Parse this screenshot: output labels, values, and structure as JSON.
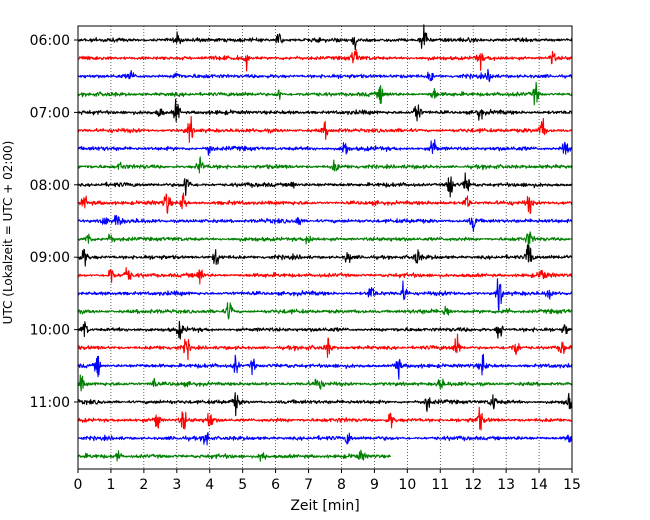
{
  "chart_data": {
    "type": "line",
    "title": "",
    "xlabel": "Zeit  [min]",
    "ylabel": "UTC (Lokalzeit = UTC + 02:00)",
    "xlim": [
      0,
      15
    ],
    "x_ticks": [
      "0",
      "1",
      "2",
      "3",
      "4",
      "5",
      "6",
      "7",
      "8",
      "9",
      "10",
      "11",
      "12",
      "13",
      "14",
      "15"
    ],
    "y_ticks": [
      "06:00",
      "07:00",
      "08:00",
      "09:00",
      "10:00",
      "11:00"
    ],
    "grid": "vertical dotted lines at each minute",
    "trace_colors": [
      "#000000",
      "#ff0000",
      "#0000ff",
      "#008000"
    ],
    "series": [
      {
        "start": "06:00",
        "x": [
          0,
          15
        ],
        "end_x": 15,
        "color": "#000000",
        "events": [
          [
            6.1,
            7
          ],
          [
            10.5,
            16
          ],
          [
            8.4,
            6
          ],
          [
            3.0,
            4
          ]
        ]
      },
      {
        "start": "06:15",
        "x": [
          0,
          15
        ],
        "end_x": 15,
        "color": "#ff0000",
        "events": [
          [
            5.1,
            7
          ],
          [
            8.4,
            9
          ],
          [
            12.2,
            7
          ],
          [
            14.4,
            6
          ]
        ]
      },
      {
        "start": "06:30",
        "x": [
          0,
          15
        ],
        "end_x": 15,
        "color": "#0000ff",
        "events": [
          [
            1.6,
            4
          ],
          [
            3.0,
            6
          ],
          [
            10.7,
            5
          ],
          [
            12.5,
            5
          ]
        ]
      },
      {
        "start": "06:45",
        "x": [
          0,
          15
        ],
        "end_x": 15,
        "color": "#008000",
        "events": [
          [
            9.2,
            7
          ],
          [
            10.8,
            6
          ],
          [
            13.9,
            9
          ],
          [
            6.1,
            5
          ]
        ]
      },
      {
        "start": "07:00",
        "x": [
          0,
          15
        ],
        "end_x": 15,
        "color": "#000000",
        "events": [
          [
            3.0,
            12
          ],
          [
            10.3,
            13
          ],
          [
            12.2,
            6
          ],
          [
            2.5,
            4
          ]
        ]
      },
      {
        "start": "07:15",
        "x": [
          0,
          15
        ],
        "end_x": 15,
        "color": "#ff0000",
        "events": [
          [
            3.4,
            10
          ],
          [
            7.5,
            6
          ],
          [
            14.1,
            10
          ]
        ]
      },
      {
        "start": "07:30",
        "x": [
          0,
          15
        ],
        "end_x": 15,
        "color": "#0000ff",
        "events": [
          [
            4.0,
            7
          ],
          [
            8.1,
            9
          ],
          [
            10.8,
            9
          ],
          [
            14.8,
            7
          ]
        ]
      },
      {
        "start": "07:45",
        "x": [
          0,
          15
        ],
        "end_x": 15,
        "color": "#008000",
        "events": [
          [
            3.7,
            9
          ],
          [
            1.3,
            4
          ],
          [
            7.8,
            5
          ]
        ]
      },
      {
        "start": "08:00",
        "x": [
          0,
          15
        ],
        "end_x": 15,
        "color": "#000000",
        "events": [
          [
            3.3,
            11
          ],
          [
            11.3,
            13
          ],
          [
            11.8,
            10
          ],
          [
            6.5,
            4
          ]
        ]
      },
      {
        "start": "08:15",
        "x": [
          0,
          15
        ],
        "end_x": 15,
        "color": "#ff0000",
        "events": [
          [
            2.7,
            11
          ],
          [
            3.2,
            9
          ],
          [
            11.8,
            8
          ],
          [
            13.7,
            9
          ],
          [
            0.2,
            6
          ]
        ]
      },
      {
        "start": "08:30",
        "x": [
          0,
          15
        ],
        "end_x": 15,
        "color": "#0000ff",
        "events": [
          [
            0.8,
            6
          ],
          [
            1.2,
            8
          ],
          [
            12.0,
            8
          ],
          [
            6.7,
            5
          ]
        ]
      },
      {
        "start": "08:45",
        "x": [
          0,
          15
        ],
        "end_x": 15,
        "color": "#008000",
        "events": [
          [
            0.3,
            7
          ],
          [
            1.0,
            4
          ],
          [
            7.0,
            5
          ],
          [
            13.7,
            7
          ]
        ]
      },
      {
        "start": "09:00",
        "x": [
          0,
          15
        ],
        "end_x": 15,
        "color": "#000000",
        "events": [
          [
            0.2,
            9
          ],
          [
            4.2,
            8
          ],
          [
            13.7,
            16
          ],
          [
            8.2,
            6
          ],
          [
            10.3,
            7
          ]
        ]
      },
      {
        "start": "09:15",
        "x": [
          0,
          15
        ],
        "end_x": 15,
        "color": "#ff0000",
        "events": [
          [
            1.0,
            9
          ],
          [
            1.5,
            8
          ],
          [
            3.7,
            8
          ],
          [
            14.1,
            6
          ]
        ]
      },
      {
        "start": "09:30",
        "x": [
          0,
          15
        ],
        "end_x": 15,
        "color": "#0000ff",
        "events": [
          [
            8.9,
            8
          ],
          [
            9.9,
            9
          ],
          [
            12.8,
            16
          ],
          [
            14.3,
            6
          ]
        ]
      },
      {
        "start": "09:45",
        "x": [
          0,
          15
        ],
        "end_x": 15,
        "color": "#008000",
        "events": [
          [
            4.6,
            10
          ],
          [
            11.2,
            7
          ],
          [
            13.0,
            5
          ]
        ]
      },
      {
        "start": "10:00",
        "x": [
          0,
          15
        ],
        "end_x": 15,
        "color": "#000000",
        "events": [
          [
            0.2,
            8
          ],
          [
            3.1,
            7
          ],
          [
            12.8,
            9
          ],
          [
            14.8,
            5
          ]
        ]
      },
      {
        "start": "10:15",
        "x": [
          0,
          15
        ],
        "end_x": 15,
        "color": "#ff0000",
        "events": [
          [
            3.3,
            9
          ],
          [
            7.6,
            8
          ],
          [
            11.5,
            12
          ],
          [
            13.3,
            8
          ],
          [
            14.7,
            6
          ]
        ]
      },
      {
        "start": "10:30",
        "x": [
          0,
          15
        ],
        "end_x": 15,
        "color": "#0000ff",
        "events": [
          [
            0.6,
            9
          ],
          [
            4.8,
            8
          ],
          [
            9.7,
            11
          ],
          [
            12.3,
            10
          ],
          [
            5.3,
            6
          ]
        ]
      },
      {
        "start": "10:45",
        "x": [
          0,
          15
        ],
        "end_x": 15,
        "color": "#008000",
        "events": [
          [
            0.1,
            7
          ],
          [
            7.3,
            9
          ],
          [
            2.3,
            5
          ],
          [
            11.0,
            6
          ]
        ]
      },
      {
        "start": "11:00",
        "x": [
          0,
          15
        ],
        "end_x": 15,
        "color": "#000000",
        "events": [
          [
            4.8,
            9
          ],
          [
            10.6,
            7
          ],
          [
            12.6,
            8
          ],
          [
            14.9,
            7
          ]
        ]
      },
      {
        "start": "11:15",
        "x": [
          0,
          15
        ],
        "end_x": 15,
        "color": "#ff0000",
        "events": [
          [
            2.4,
            10
          ],
          [
            3.2,
            10
          ],
          [
            4.0,
            9
          ],
          [
            9.5,
            8
          ],
          [
            12.2,
            9
          ]
        ]
      },
      {
        "start": "11:30",
        "x": [
          0,
          15
        ],
        "end_x": 15,
        "color": "#0000ff",
        "events": [
          [
            3.9,
            8
          ],
          [
            8.2,
            6
          ],
          [
            14.9,
            6
          ]
        ]
      },
      {
        "start": "11:45",
        "x": [
          0,
          9.5
        ],
        "end_x": 9.5,
        "color": "#008000",
        "events": [
          [
            5.6,
            7
          ],
          [
            1.2,
            5
          ],
          [
            8.6,
            4
          ]
        ]
      }
    ]
  }
}
